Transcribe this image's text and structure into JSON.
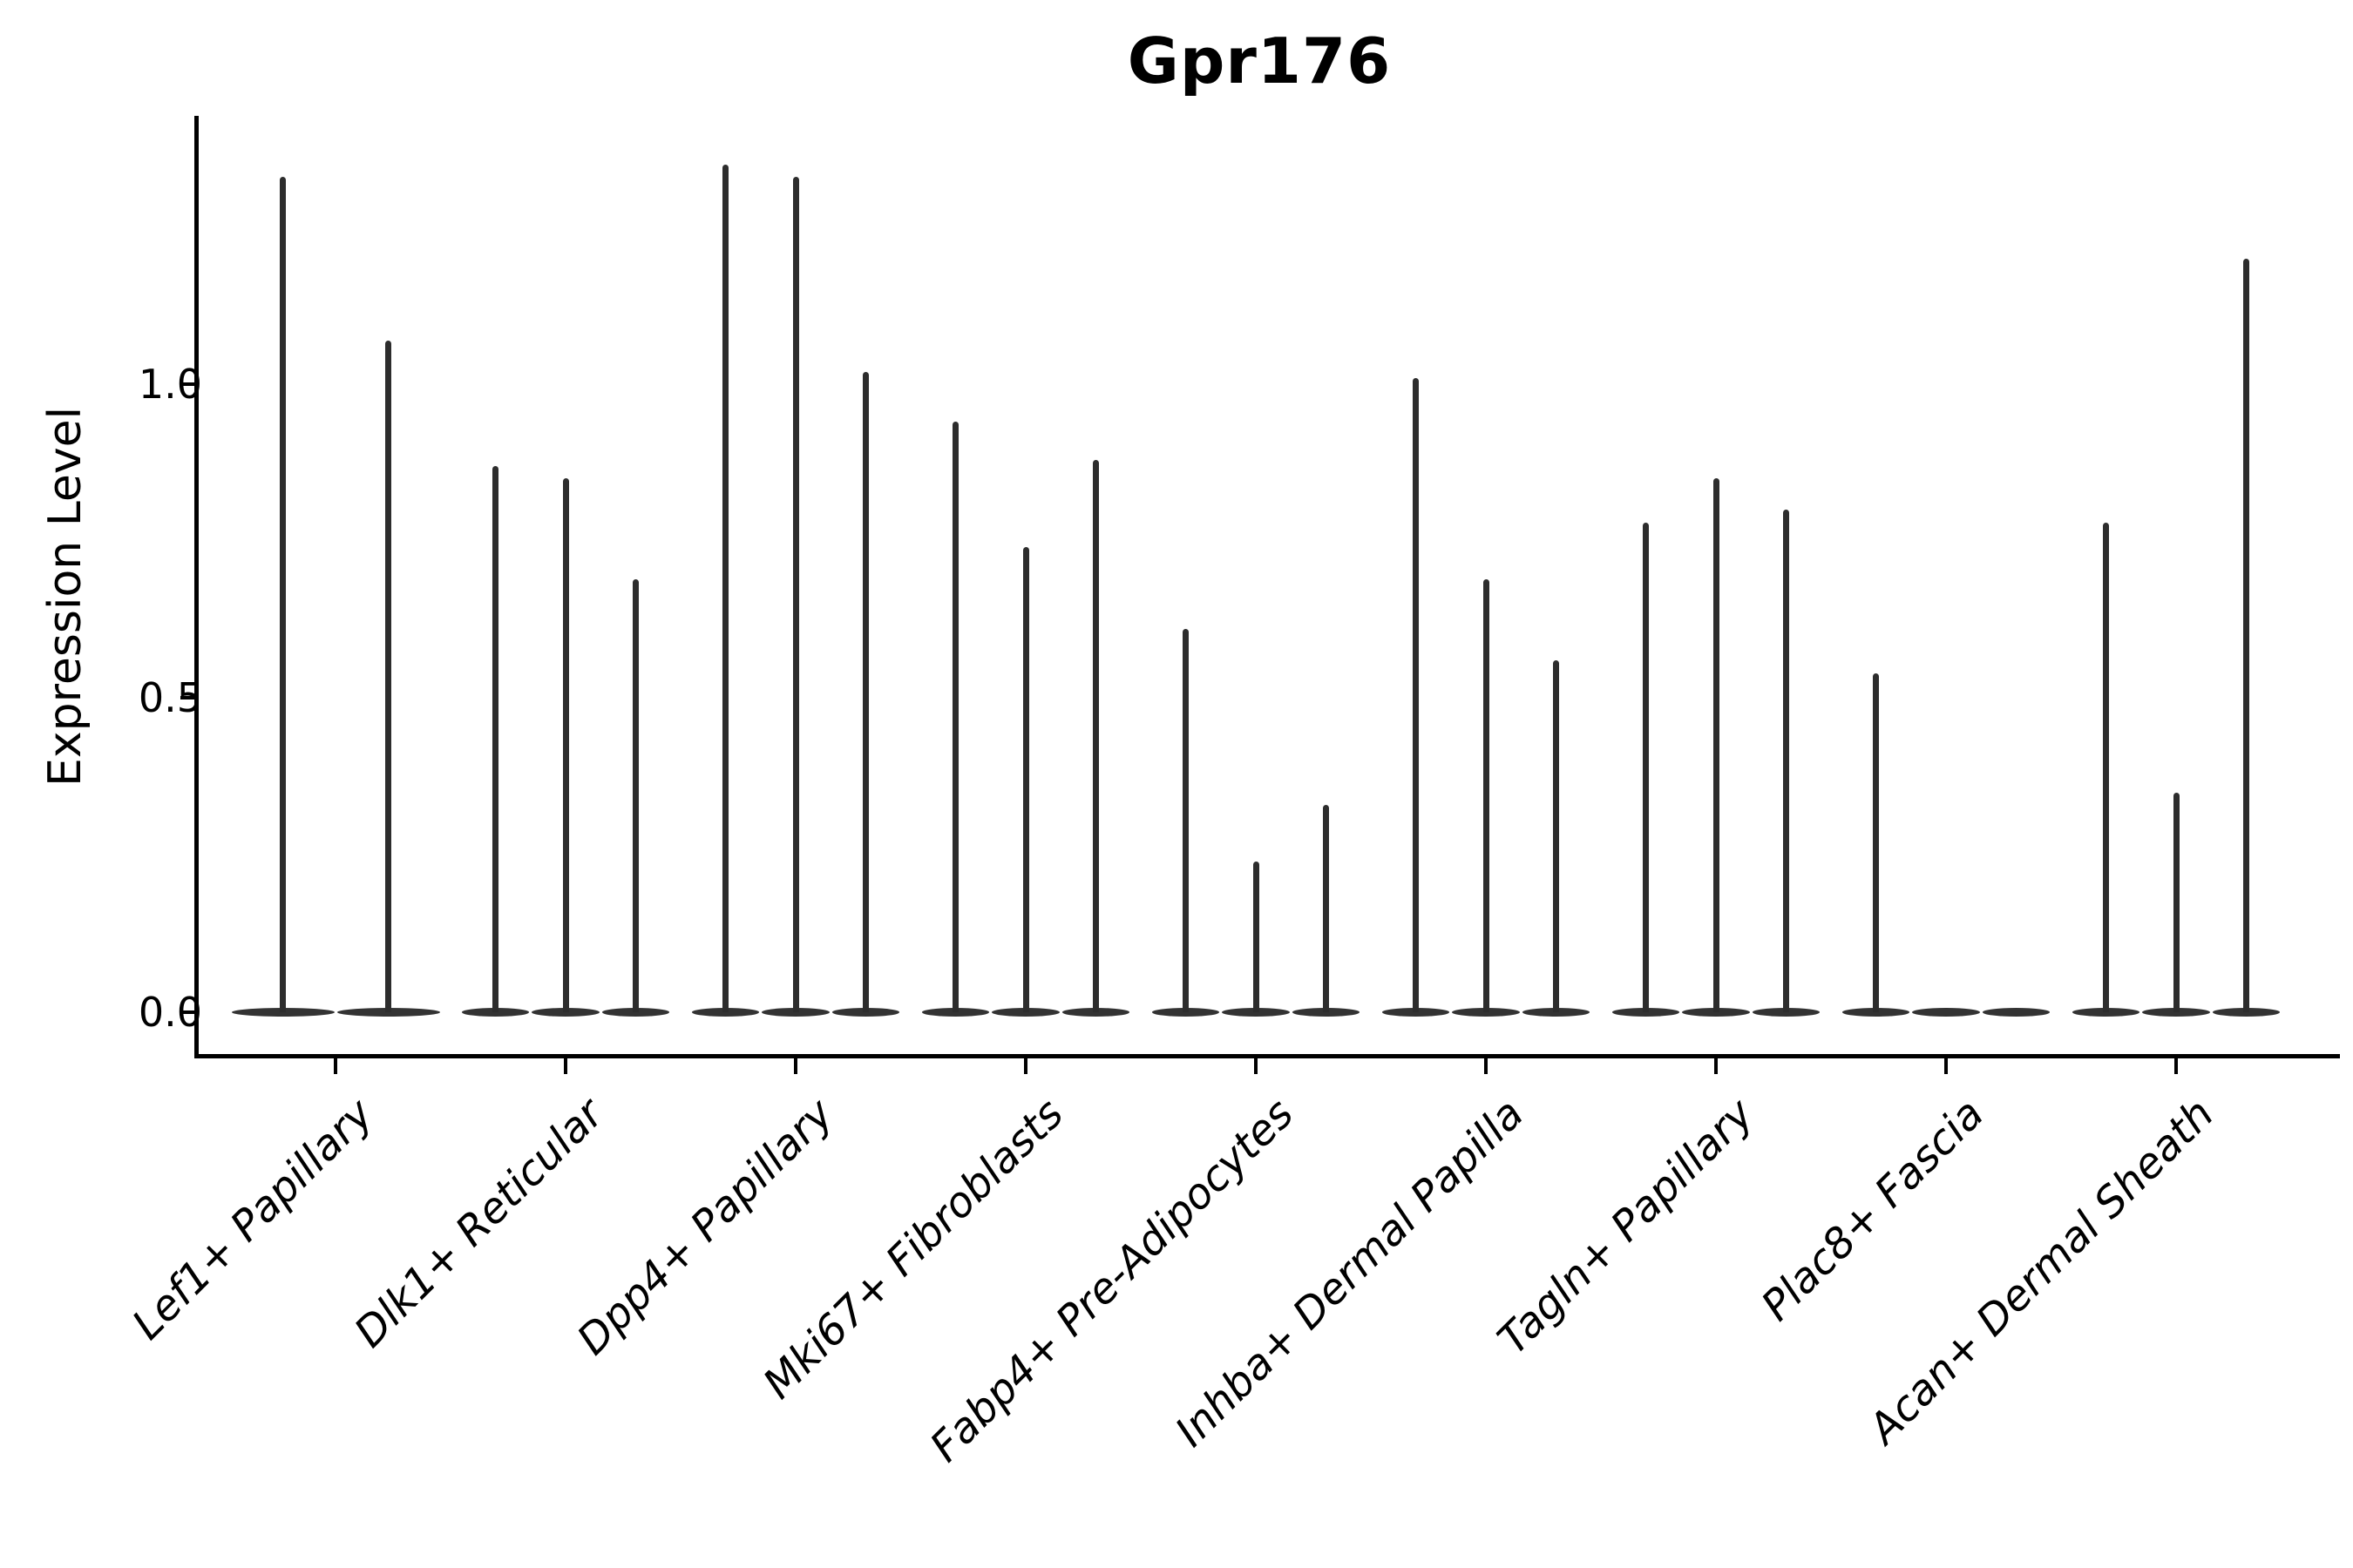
{
  "title": "Gpr176",
  "ylabel": "Expression Level",
  "yticks": [
    "0.0",
    "0.5",
    "1.0"
  ],
  "colors": {
    "violin": "#2d2d2d",
    "violin_base": "#333333",
    "axis": "#000000",
    "background": "#ffffff"
  },
  "chart_data": {
    "type": "violin",
    "title": "Gpr176",
    "xlabel": "",
    "ylabel": "Expression Level",
    "ylim": [
      -0.07,
      1.42
    ],
    "ytick_values": [
      0.0,
      0.5,
      1.0
    ],
    "grid": false,
    "legend": "none",
    "description": "Stacked-violin style expression plot; each cell-type group contains thin violins (2 in the first group, 3 in the others) whose mass is concentrated at 0 with a narrow spike rising to the listed maximum expression value.",
    "categories": [
      "Lef1+ Papillary",
      "Dlk1+ Reticular",
      "Dpp4+ Papillary",
      "Mki67+ Fibroblasts",
      "Fabp4+ Pre-Adipocytes",
      "Inhba+ Dermal Papilla",
      "Tagln+ Papillary",
      "Plac8+ Fascia",
      "Acan+ Dermal Sheath"
    ],
    "groups": [
      {
        "label": "Lef1+ Papillary",
        "violin_maxima": [
          1.33,
          1.07
        ]
      },
      {
        "label": "Dlk1+ Reticular",
        "violin_maxima": [
          0.87,
          0.85,
          0.69
        ]
      },
      {
        "label": "Dpp4+ Papillary",
        "violin_maxima": [
          1.35,
          1.33,
          1.02
        ]
      },
      {
        "label": "Mki67+ Fibroblasts",
        "violin_maxima": [
          0.94,
          0.74,
          0.88
        ]
      },
      {
        "label": "Fabp4+ Pre-Adipocytes",
        "violin_maxima": [
          0.61,
          0.24,
          0.33
        ]
      },
      {
        "label": "Inhba+ Dermal Papilla",
        "violin_maxima": [
          1.01,
          0.69,
          0.56
        ]
      },
      {
        "label": "Tagln+ Papillary",
        "violin_maxima": [
          0.78,
          0.85,
          0.8
        ]
      },
      {
        "label": "Plac8+ Fascia",
        "violin_maxima": [
          0.54,
          0.0,
          0.0
        ]
      },
      {
        "label": "Acan+ Dermal Sheath",
        "violin_maxima": [
          0.78,
          0.35,
          1.2
        ]
      }
    ]
  }
}
